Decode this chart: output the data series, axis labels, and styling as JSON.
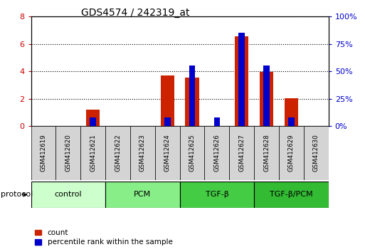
{
  "title": "GDS4574 / 242319_at",
  "samples": [
    "GSM412619",
    "GSM412620",
    "GSM412621",
    "GSM412622",
    "GSM412623",
    "GSM412624",
    "GSM412625",
    "GSM412626",
    "GSM412627",
    "GSM412628",
    "GSM412629",
    "GSM412630"
  ],
  "count_values": [
    0,
    0,
    1.2,
    0,
    0,
    3.7,
    3.55,
    0,
    6.55,
    3.95,
    2.05,
    0
  ],
  "percentile_values": [
    0,
    0,
    8,
    0,
    0,
    8,
    55,
    8,
    85,
    55,
    8,
    0
  ],
  "groups": [
    {
      "label": "control",
      "start": 0,
      "end": 3,
      "color": "#ccffcc"
    },
    {
      "label": "PCM",
      "start": 3,
      "end": 6,
      "color": "#88ee88"
    },
    {
      "label": "TGF-β",
      "start": 6,
      "end": 9,
      "color": "#44cc44"
    },
    {
      "label": "TGF-β/PCM",
      "start": 9,
      "end": 12,
      "color": "#33bb33"
    }
  ],
  "ylim_left": [
    0,
    8
  ],
  "ylim_right": [
    0,
    100
  ],
  "yticks_left": [
    0,
    2,
    4,
    6,
    8
  ],
  "yticks_right": [
    0,
    25,
    50,
    75,
    100
  ],
  "ytick_labels_right": [
    "0%",
    "25%",
    "50%",
    "75%",
    "100%"
  ],
  "bar_width": 0.55,
  "count_color": "#cc2200",
  "percentile_color": "#0000cc",
  "tick_label_color_left": "#cc0000",
  "tick_label_color_right": "#0000cc",
  "sample_box_color": "#d4d4d4",
  "fig_width": 5.13,
  "fig_height": 3.54,
  "dpi": 100
}
